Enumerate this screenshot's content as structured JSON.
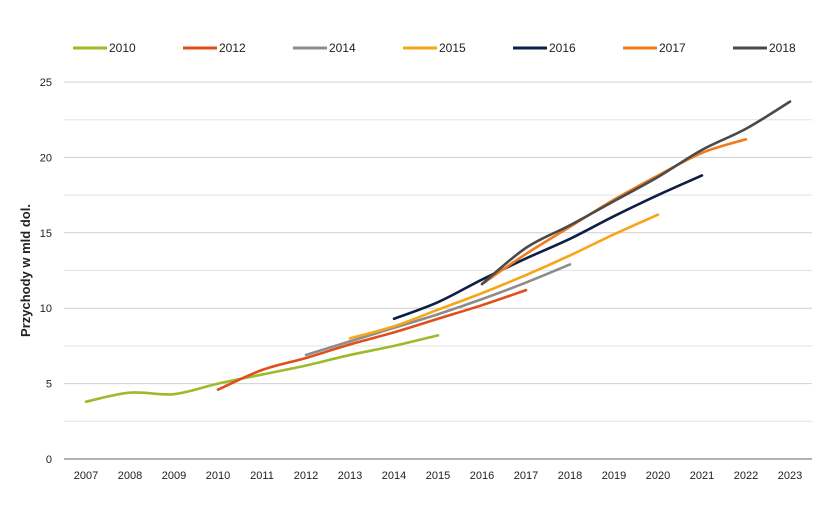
{
  "chart_data": {
    "type": "line",
    "title": "",
    "xlabel": "",
    "ylabel": "Przychody w mld dol.",
    "x": [
      "2007",
      "2008",
      "2009",
      "2010",
      "2011",
      "2012",
      "2013",
      "2014",
      "2015",
      "2016",
      "2017",
      "2018",
      "2019",
      "2020",
      "2021",
      "2022",
      "2023"
    ],
    "ylim": [
      0,
      25
    ],
    "yticks": [
      0,
      5,
      10,
      15,
      20,
      25
    ],
    "grid": true,
    "legend": "top",
    "series": [
      {
        "name": "2010",
        "color": "#9bbb2a",
        "points": [
          [
            2007,
            3.8
          ],
          [
            2008,
            4.4
          ],
          [
            2009,
            4.3
          ],
          [
            2010,
            5.0
          ],
          [
            2011,
            5.6
          ],
          [
            2012,
            6.2
          ],
          [
            2013,
            6.9
          ],
          [
            2014,
            7.5
          ],
          [
            2015,
            8.2
          ]
        ]
      },
      {
        "name": "2012",
        "color": "#e04e1b",
        "points": [
          [
            2010,
            4.6
          ],
          [
            2011,
            5.9
          ],
          [
            2012,
            6.7
          ],
          [
            2013,
            7.6
          ],
          [
            2014,
            8.4
          ],
          [
            2015,
            9.3
          ],
          [
            2016,
            10.2
          ],
          [
            2017,
            11.2
          ]
        ]
      },
      {
        "name": "2014",
        "color": "#8c8c8c",
        "points": [
          [
            2012,
            6.9
          ],
          [
            2013,
            7.8
          ],
          [
            2014,
            8.7
          ],
          [
            2015,
            9.6
          ],
          [
            2016,
            10.6
          ],
          [
            2017,
            11.7
          ],
          [
            2018,
            12.9
          ]
        ]
      },
      {
        "name": "2015",
        "color": "#f5a619",
        "points": [
          [
            2013,
            8.0
          ],
          [
            2014,
            8.8
          ],
          [
            2015,
            9.9
          ],
          [
            2016,
            11.0
          ],
          [
            2017,
            12.2
          ],
          [
            2018,
            13.5
          ],
          [
            2019,
            14.9
          ],
          [
            2020,
            16.2
          ]
        ]
      },
      {
        "name": "2016",
        "color": "#0f1e45",
        "points": [
          [
            2014,
            9.3
          ],
          [
            2015,
            10.4
          ],
          [
            2016,
            11.9
          ],
          [
            2017,
            13.3
          ],
          [
            2018,
            14.6
          ],
          [
            2019,
            16.1
          ],
          [
            2020,
            17.5
          ],
          [
            2021,
            18.8
          ]
        ]
      },
      {
        "name": "2017",
        "color": "#f07b1c",
        "points": [
          [
            2016,
            11.6
          ],
          [
            2017,
            13.6
          ],
          [
            2018,
            15.4
          ],
          [
            2019,
            17.2
          ],
          [
            2020,
            18.8
          ],
          [
            2021,
            20.3
          ],
          [
            2022,
            21.2
          ]
        ]
      },
      {
        "name": "2018",
        "color": "#4a4a4a",
        "points": [
          [
            2016,
            11.6
          ],
          [
            2017,
            14.0
          ],
          [
            2018,
            15.5
          ],
          [
            2019,
            17.1
          ],
          [
            2020,
            18.7
          ],
          [
            2021,
            20.5
          ],
          [
            2022,
            21.9
          ],
          [
            2023,
            23.7
          ]
        ]
      }
    ]
  }
}
